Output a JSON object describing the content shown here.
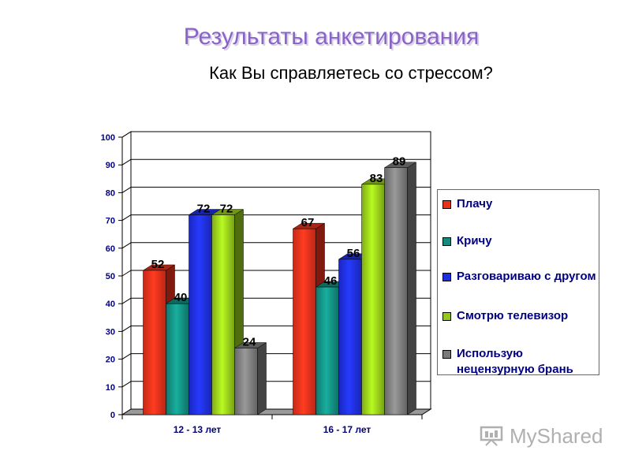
{
  "slide": {
    "title": "Результаты анкетирования",
    "subtitle": "Как Вы справляетесь со стрессом?"
  },
  "watermark": {
    "text": "MyShared",
    "icon": "projector-screen-icon"
  },
  "chart_data": {
    "type": "bar",
    "title": "",
    "xlabel": "",
    "ylabel": "",
    "ylim": [
      0,
      100
    ],
    "yticks": [
      0,
      10,
      20,
      30,
      40,
      50,
      60,
      70,
      80,
      90,
      100
    ],
    "grid": true,
    "legend_position": "right",
    "categories": [
      "12 - 13 лет",
      "16 - 17 лет"
    ],
    "series": [
      {
        "name": "Плачу",
        "values": [
          52,
          67
        ],
        "color": "#E8301A"
      },
      {
        "name": "Кричу",
        "values": [
          40,
          46
        ],
        "color": "#138C7E"
      },
      {
        "name": "Разговариваю с другом",
        "values": [
          72,
          56
        ],
        "color": "#1E2EE0"
      },
      {
        "name": "Смотрю телевизор",
        "values": [
          72,
          83
        ],
        "color": "#94C81A"
      },
      {
        "name": "Использую нецензурную брань",
        "values": [
          24,
          89
        ],
        "color": "#7A7A7A"
      }
    ]
  }
}
